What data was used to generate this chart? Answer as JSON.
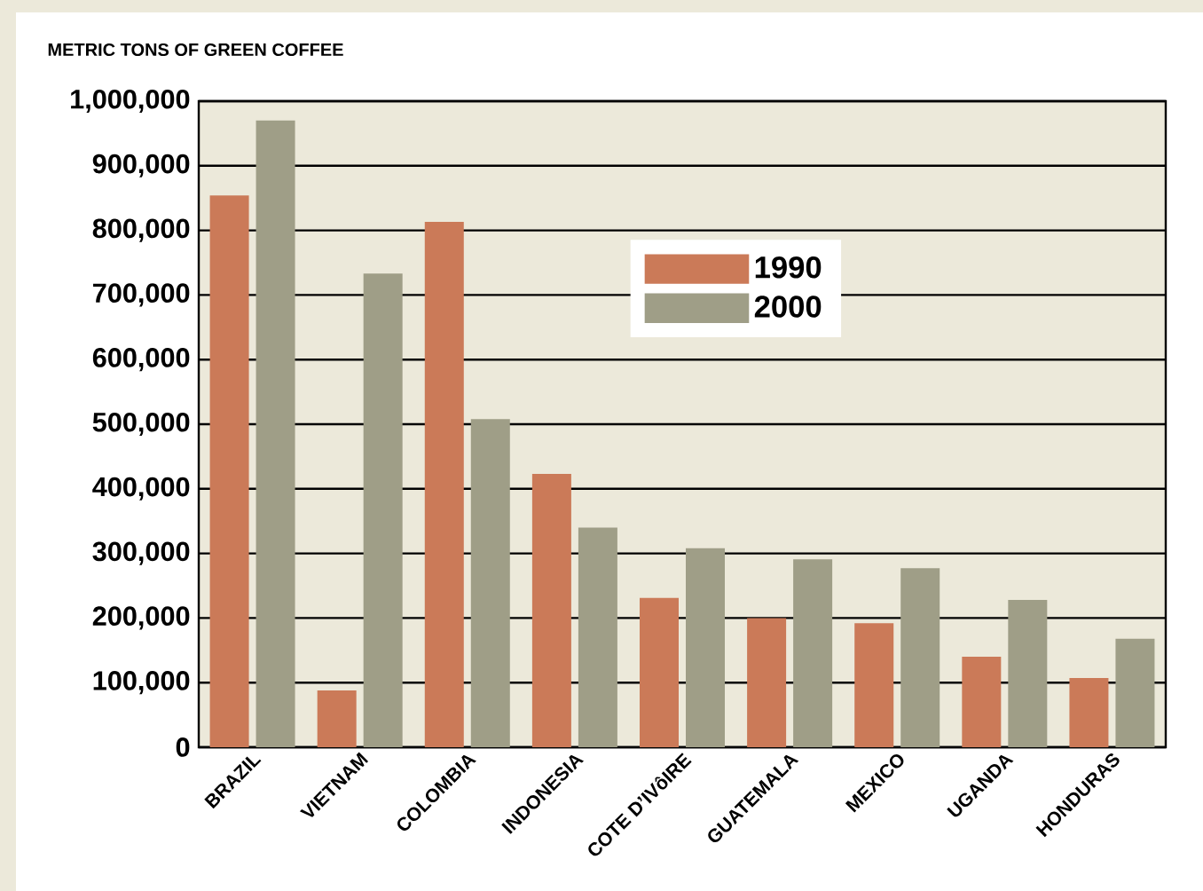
{
  "chart_data": {
    "type": "bar",
    "ylabel": "METRIC TONS OF GREEN COFFEE",
    "categories": [
      "BRAZIL",
      "VIETNAM",
      "COLOMBIA",
      "INDONESIA",
      "COTE D’IVôIRE",
      "GUATEMALA",
      "MEXICO",
      "UGANDA",
      "HONDURAS"
    ],
    "series": [
      {
        "name": "1990",
        "color": "#cb7a58",
        "values": [
          854000,
          88000,
          813000,
          423000,
          231000,
          200000,
          192000,
          140000,
          107000
        ]
      },
      {
        "name": "2000",
        "color": "#9f9e87",
        "values": [
          970000,
          733000,
          508000,
          340000,
          308000,
          291000,
          277000,
          228000,
          168000
        ]
      }
    ],
    "ylim": [
      0,
      1000000
    ],
    "yticks": [
      {
        "value": 0,
        "label": "0"
      },
      {
        "value": 100000,
        "label": "100,000"
      },
      {
        "value": 200000,
        "label": "200,000"
      },
      {
        "value": 300000,
        "label": "300,000"
      },
      {
        "value": 400000,
        "label": "400,000"
      },
      {
        "value": 500000,
        "label": "500,000"
      },
      {
        "value": 600000,
        "label": "600,000"
      },
      {
        "value": 700000,
        "label": "700,000"
      },
      {
        "value": 800000,
        "label": "800,000"
      },
      {
        "value": 900000,
        "label": "900,000"
      },
      {
        "value": 1000000,
        "label": "1,000,000"
      }
    ],
    "grid": "y",
    "legend": "top"
  }
}
